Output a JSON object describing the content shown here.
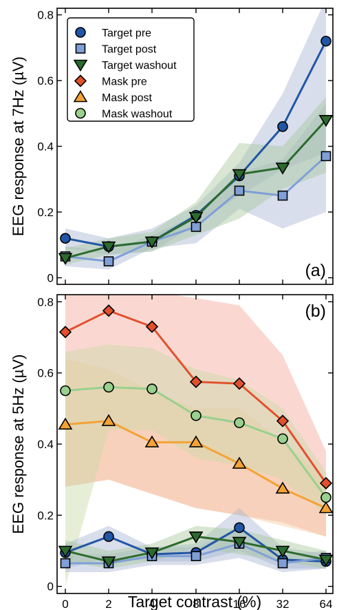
{
  "figure": {
    "xlabel": "Target contrast (%)"
  },
  "chart_data": [
    {
      "type": "line",
      "panel_label": "(a)",
      "ylabel": "EEG response at 7Hz (µV)",
      "x_categories": [
        "0",
        "2",
        "4",
        "8",
        "16",
        "32",
        "64"
      ],
      "ylim": [
        -0.02,
        0.82
      ],
      "yticks": [
        "0",
        "0.2",
        "0.4",
        "0.6",
        "0.8"
      ],
      "legend_position": "top-left",
      "legend": [
        {
          "name": "Target pre",
          "marker": "circle",
          "color": "#2156a5"
        },
        {
          "name": "Target post",
          "marker": "square",
          "color": "#7f9fd6"
        },
        {
          "name": "Target washout",
          "marker": "triangle-down",
          "color": "#2c6b2d"
        },
        {
          "name": "Mask pre",
          "marker": "diamond",
          "color": "#e2502c"
        },
        {
          "name": "Mask post",
          "marker": "triangle-up",
          "color": "#f4a234"
        },
        {
          "name": "Mask washout",
          "marker": "circle",
          "color": "#98d08e"
        }
      ],
      "series": [
        {
          "name": "Target pre",
          "marker": "circle",
          "color": "#2156a5",
          "band_color": "#a9b6d3",
          "values": [
            0.12,
            0.095,
            0.11,
            0.19,
            0.31,
            0.46,
            0.72
          ],
          "upper": [
            0.15,
            0.12,
            0.15,
            0.22,
            0.35,
            0.56,
            0.85
          ],
          "lower": [
            0.09,
            0.07,
            0.08,
            0.16,
            0.25,
            0.33,
            0.38
          ]
        },
        {
          "name": "Target post",
          "marker": "square",
          "color": "#7f9fd6",
          "band_color": "#a9b6d3",
          "values": [
            0.065,
            0.05,
            0.11,
            0.155,
            0.265,
            0.25,
            0.37
          ],
          "upper": [
            0.095,
            0.08,
            0.13,
            0.19,
            0.32,
            0.36,
            0.53
          ],
          "lower": [
            0.035,
            0.025,
            0.09,
            0.105,
            0.21,
            0.15,
            0.2
          ]
        },
        {
          "name": "Target washout",
          "marker": "triangle-down",
          "color": "#2c6b2d",
          "band_color": "#a8c79d",
          "values": [
            0.06,
            0.095,
            0.11,
            0.185,
            0.315,
            0.335,
            0.48
          ],
          "upper": [
            0.09,
            0.12,
            0.14,
            0.23,
            0.41,
            0.4,
            0.55
          ],
          "lower": [
            0.04,
            0.07,
            0.08,
            0.13,
            0.18,
            0.27,
            0.32
          ]
        }
      ]
    },
    {
      "type": "line",
      "panel_label": "(b)",
      "ylabel": "EEG response at 5Hz (µV)",
      "x_categories": [
        "0",
        "2",
        "4",
        "8",
        "16",
        "32",
        "64"
      ],
      "ylim": [
        -0.02,
        0.82
      ],
      "yticks": [
        "0",
        "0.2",
        "0.4",
        "0.6",
        "0.8"
      ],
      "series": [
        {
          "name": "Mask pre",
          "marker": "diamond",
          "color": "#e2502c",
          "band_color": "#f3a898",
          "values": [
            0.715,
            0.775,
            0.73,
            0.575,
            0.57,
            0.465,
            0.29
          ],
          "upper": [
            0.83,
            0.84,
            0.83,
            0.81,
            0.79,
            0.65,
            0.38
          ],
          "lower": [
            0.28,
            0.3,
            0.26,
            0.22,
            0.2,
            0.18,
            0.14
          ]
        },
        {
          "name": "Mask post",
          "marker": "triangle-up",
          "color": "#f4a234",
          "band_color": "#f5caa0",
          "values": [
            0.455,
            0.465,
            0.405,
            0.405,
            0.345,
            0.275,
            0.22
          ],
          "upper": [
            0.64,
            0.61,
            0.55,
            0.5,
            0.5,
            0.41,
            0.3
          ],
          "lower": [
            0.28,
            0.3,
            0.26,
            0.22,
            0.2,
            0.17,
            0.14
          ]
        },
        {
          "name": "Mask washout",
          "marker": "circle",
          "color": "#98d08e",
          "band_color": "#c9d9a8",
          "values": [
            0.55,
            0.56,
            0.555,
            0.48,
            0.46,
            0.415,
            0.25
          ],
          "upper": [
            0.66,
            0.68,
            0.67,
            0.61,
            0.58,
            0.5,
            0.32
          ],
          "lower": [
            0.0,
            0.44,
            0.44,
            0.36,
            0.34,
            0.3,
            0.2
          ]
        },
        {
          "name": "Target pre",
          "marker": "circle",
          "color": "#2156a5",
          "band_color": "#a9b6d3",
          "values": [
            0.095,
            0.14,
            0.09,
            0.095,
            0.165,
            0.075,
            0.07
          ],
          "upper": [
            0.12,
            0.17,
            0.11,
            0.12,
            0.22,
            0.11,
            0.09
          ],
          "lower": [
            0.05,
            0.08,
            0.07,
            0.07,
            0.1,
            0.05,
            0.05
          ]
        },
        {
          "name": "Target post",
          "marker": "square",
          "color": "#7f9fd6",
          "band_color": "#a9b6d3",
          "values": [
            0.065,
            0.065,
            0.085,
            0.085,
            0.12,
            0.065,
            0.08
          ],
          "upper": [
            0.09,
            0.09,
            0.11,
            0.11,
            0.16,
            0.09,
            0.1
          ],
          "lower": [
            0.04,
            0.04,
            0.06,
            0.06,
            0.08,
            0.04,
            0.05
          ]
        },
        {
          "name": "Target washout",
          "marker": "triangle-down",
          "color": "#2c6b2d",
          "band_color": "#a8c79d",
          "values": [
            0.1,
            0.07,
            0.095,
            0.14,
            0.125,
            0.1,
            0.075
          ],
          "upper": [
            0.13,
            0.1,
            0.12,
            0.17,
            0.16,
            0.13,
            0.1
          ],
          "lower": [
            0.07,
            0.05,
            0.07,
            0.11,
            0.09,
            0.07,
            0.05
          ]
        }
      ]
    }
  ]
}
